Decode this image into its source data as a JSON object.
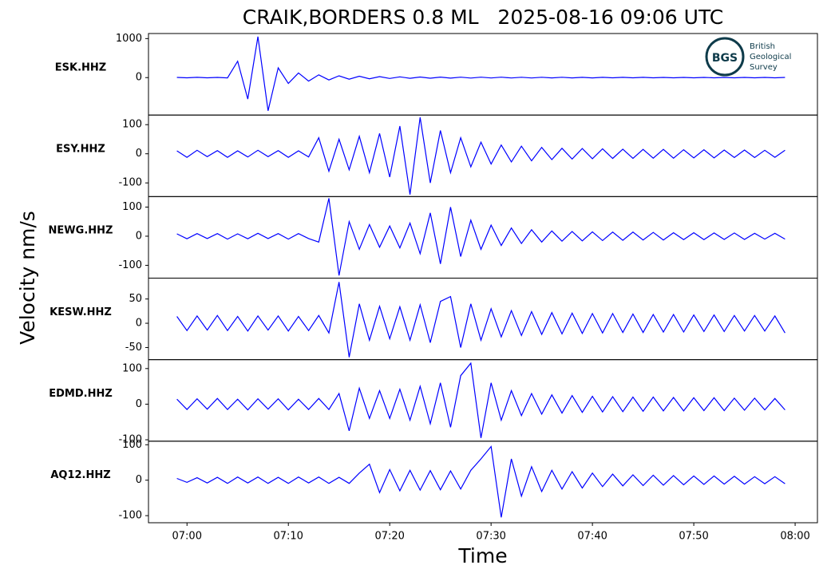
{
  "chart_data": {
    "type": "line",
    "title": "CRAIK,BORDERS 0.8 ML   2025-08-16 09:06 UTC",
    "xlabel": "Time",
    "ylabel": "Velocity nm/s",
    "color": "#0000ff",
    "xlim": [
      -3.8,
      62.2
    ],
    "xticks": [
      {
        "value": 0,
        "label": "07:00"
      },
      {
        "value": 10,
        "label": "07:10"
      },
      {
        "value": 20,
        "label": "07:20"
      },
      {
        "value": 30,
        "label": "07:30"
      },
      {
        "value": 40,
        "label": "07:40"
      },
      {
        "value": 50,
        "label": "07:50"
      },
      {
        "value": 60,
        "label": "08:00"
      }
    ],
    "x": [
      -1,
      0,
      1,
      2,
      3,
      4,
      5,
      6,
      7,
      8,
      9,
      10,
      11,
      12,
      13,
      14,
      15,
      16,
      17,
      18,
      19,
      20,
      21,
      22,
      23,
      24,
      25,
      26,
      27,
      28,
      29,
      30,
      31,
      32,
      33,
      34,
      35,
      36,
      37,
      38,
      39,
      40,
      41,
      42,
      43,
      44,
      45,
      46,
      47,
      48,
      49,
      50,
      51,
      52,
      53,
      54,
      55,
      56,
      57,
      58,
      59
    ],
    "panels": [
      {
        "name": "ESK.HHZ",
        "ylim": [
          -960,
          1130
        ],
        "yticks": [
          0,
          1000
        ],
        "values": [
          5,
          -5,
          6,
          -6,
          5,
          -8,
          420,
          -550,
          1050,
          -850,
          250,
          -150,
          120,
          -90,
          70,
          -60,
          45,
          -40,
          35,
          -30,
          25,
          -22,
          20,
          -18,
          16,
          -15,
          14,
          -13,
          12,
          -12,
          11,
          -10,
          10,
          -9,
          9,
          -9,
          8,
          -8,
          8,
          -7,
          7,
          -7,
          6,
          -6,
          6,
          -6,
          6,
          -5,
          5,
          -5,
          5,
          -5,
          5,
          -5,
          5,
          -5,
          5,
          -5,
          5,
          -5,
          5
        ]
      },
      {
        "name": "ESY.HHZ",
        "ylim": [
          -147,
          133
        ],
        "yticks": [
          -100,
          0,
          100
        ],
        "values": [
          10,
          -12,
          12,
          -10,
          11,
          -12,
          10,
          -11,
          12,
          -10,
          11,
          -12,
          10,
          -11,
          55,
          -60,
          50,
          -55,
          60,
          -65,
          70,
          -80,
          95,
          -140,
          125,
          -100,
          80,
          -65,
          55,
          -45,
          40,
          -35,
          30,
          -28,
          26,
          -24,
          22,
          -20,
          19,
          -18,
          18,
          -17,
          17,
          -16,
          16,
          -16,
          15,
          -15,
          15,
          -15,
          14,
          -14,
          14,
          -14,
          13,
          -13,
          13,
          -13,
          12,
          -12,
          12
        ]
      },
      {
        "name": "NEWG.HHZ",
        "ylim": [
          -144,
          136
        ],
        "yticks": [
          -100,
          0,
          100
        ],
        "values": [
          8,
          -9,
          9,
          -8,
          9,
          -10,
          8,
          -9,
          10,
          -8,
          9,
          -10,
          9,
          -8,
          -20,
          130,
          -135,
          50,
          -45,
          40,
          -38,
          35,
          -40,
          45,
          -60,
          80,
          -95,
          100,
          -70,
          55,
          -45,
          38,
          -32,
          28,
          -25,
          22,
          -20,
          18,
          -17,
          16,
          -16,
          15,
          -15,
          14,
          -14,
          14,
          -13,
          13,
          -13,
          12,
          -12,
          12,
          -12,
          11,
          -11,
          11,
          -11,
          10,
          -10,
          10,
          -10
        ]
      },
      {
        "name": "KESW.HHZ",
        "ylim": [
          -75,
          93
        ],
        "yticks": [
          -50,
          0,
          50
        ],
        "values": [
          14,
          -15,
          15,
          -14,
          16,
          -15,
          14,
          -16,
          15,
          -14,
          15,
          -16,
          14,
          -15,
          16,
          -20,
          85,
          -70,
          40,
          -35,
          35,
          -32,
          34,
          -35,
          38,
          -40,
          45,
          55,
          -50,
          40,
          -35,
          30,
          -28,
          26,
          -25,
          24,
          -23,
          22,
          -22,
          21,
          -21,
          20,
          -20,
          20,
          -19,
          19,
          -19,
          18,
          -18,
          18,
          -18,
          17,
          -17,
          17,
          -17,
          16,
          -16,
          16,
          -16,
          15,
          -20
        ]
      },
      {
        "name": "EDMD.HHZ",
        "ylim": [
          -104,
          125
        ],
        "yticks": [
          -100,
          0,
          100
        ],
        "values": [
          14,
          -15,
          15,
          -14,
          16,
          -15,
          14,
          -16,
          15,
          -14,
          15,
          -16,
          14,
          -15,
          16,
          -15,
          30,
          -75,
          45,
          -40,
          38,
          -40,
          42,
          -45,
          50,
          -55,
          60,
          -65,
          80,
          115,
          -95,
          60,
          -45,
          38,
          -32,
          30,
          -28,
          26,
          -25,
          24,
          -23,
          22,
          -22,
          21,
          -21,
          20,
          -20,
          20,
          -19,
          19,
          -19,
          18,
          -18,
          18,
          -18,
          17,
          -17,
          17,
          -16,
          16,
          -16
        ]
      },
      {
        "name": "AQ12.HHZ",
        "ylim": [
          -120,
          110
        ],
        "yticks": [
          -100,
          0,
          100
        ],
        "values": [
          5,
          -6,
          7,
          -8,
          8,
          -9,
          9,
          -8,
          9,
          -9,
          8,
          -9,
          9,
          -8,
          9,
          -9,
          8,
          -9,
          20,
          45,
          -35,
          30,
          -30,
          28,
          -28,
          27,
          -27,
          26,
          -25,
          28,
          60,
          95,
          -105,
          60,
          -45,
          38,
          -32,
          28,
          -25,
          24,
          -22,
          20,
          -18,
          17,
          -16,
          15,
          -15,
          14,
          -14,
          13,
          -13,
          12,
          -12,
          12,
          -11,
          11,
          -11,
          10,
          -10,
          10,
          -10
        ]
      }
    ]
  },
  "logo": {
    "mark": "BGS",
    "lines": [
      "British",
      "Geological",
      "Survey"
    ]
  }
}
